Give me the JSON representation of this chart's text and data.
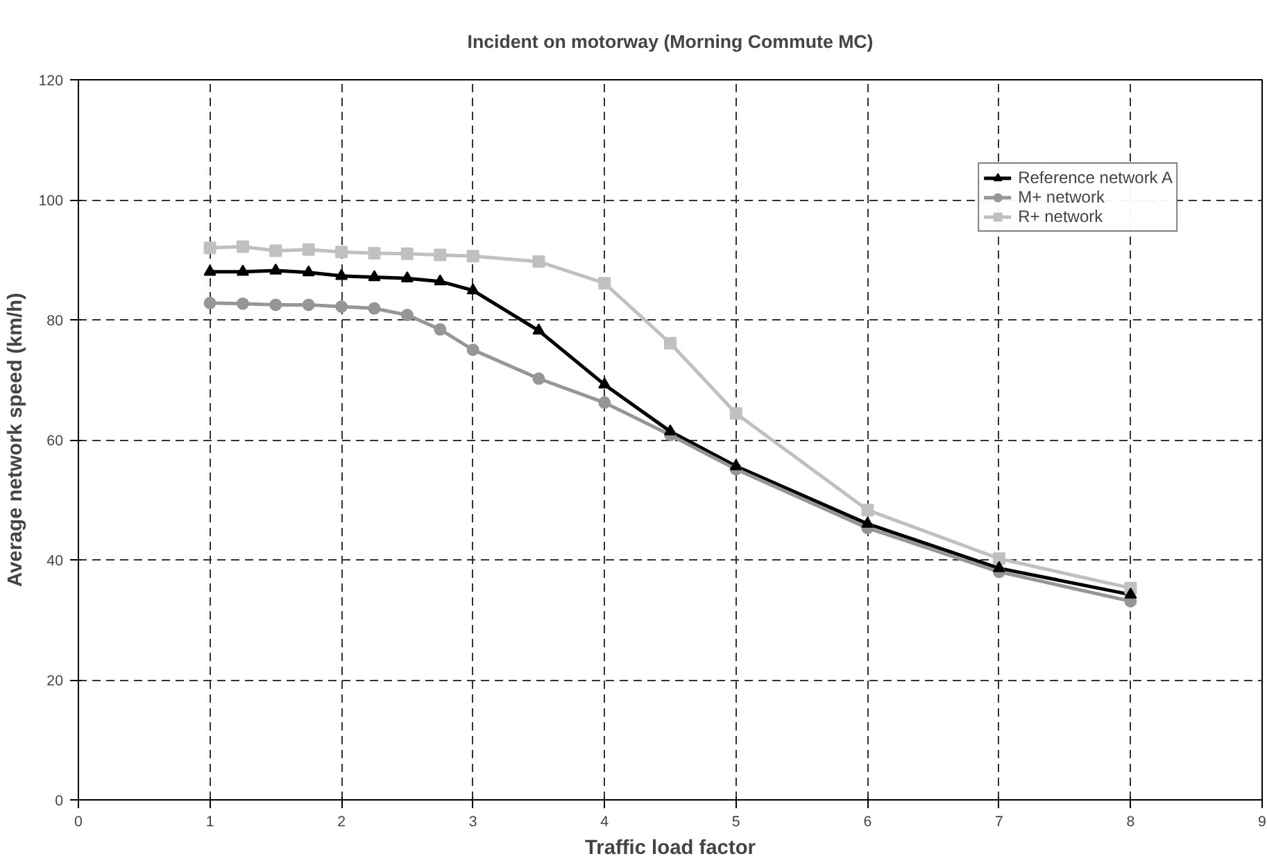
{
  "chart_data": {
    "type": "line",
    "title": "Incident on motorway (Morning Commute MC)",
    "xlabel": "Traffic load factor",
    "ylabel": "Average network speed (km/h)",
    "x": [
      1,
      1.25,
      1.5,
      1.75,
      2,
      2.25,
      2.5,
      2.75,
      3,
      3.5,
      4,
      4.5,
      5,
      6,
      7,
      8
    ],
    "series": [
      {
        "name": "Reference network A",
        "color": "#000000",
        "marker": "triangle",
        "values": [
          88.0,
          88.0,
          88.2,
          87.9,
          87.3,
          87.1,
          86.9,
          86.4,
          84.9,
          78.2,
          69.2,
          61.4,
          55.6,
          46.0,
          38.6,
          34.2
        ]
      },
      {
        "name": "M+ network",
        "color": "#969696",
        "marker": "circle",
        "values": [
          82.8,
          82.7,
          82.5,
          82.5,
          82.2,
          81.9,
          80.8,
          78.4,
          75.0,
          70.2,
          66.2,
          60.8,
          55.1,
          45.3,
          38.0,
          33.1
        ]
      },
      {
        "name": "R+ network",
        "color": "#c0c0c0",
        "marker": "square",
        "values": [
          92.0,
          92.2,
          91.5,
          91.7,
          91.3,
          91.1,
          91.0,
          90.8,
          90.6,
          89.7,
          86.1,
          76.1,
          64.4,
          48.3,
          40.2,
          35.3
        ]
      }
    ],
    "xlim": [
      0,
      9
    ],
    "xticks": [
      0,
      1,
      2,
      3,
      4,
      5,
      6,
      7,
      8,
      9
    ],
    "ylim": [
      0,
      120
    ],
    "yticks": [
      0,
      20,
      40,
      60,
      80,
      100,
      120
    ],
    "grid": true,
    "line_style": "solid",
    "legend": "top right"
  }
}
